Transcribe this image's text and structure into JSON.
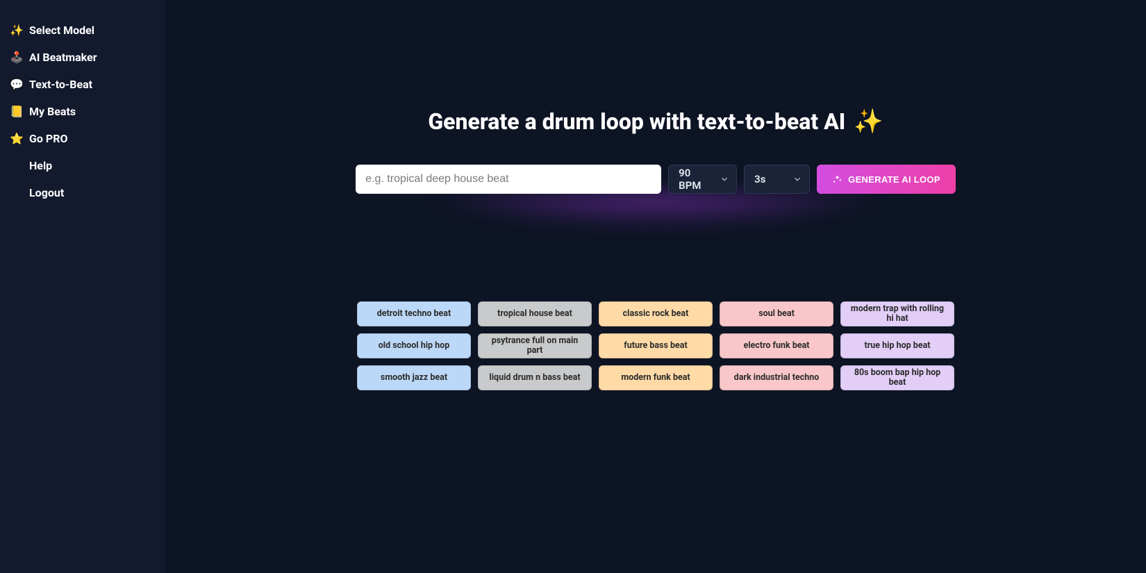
{
  "colors": {
    "bg_main": "#0d1424",
    "bg_sidebar": "#131a2e",
    "select_bg": "#1b2338",
    "select_border": "#2c3753",
    "btn_grad_start": "#d24de0",
    "btn_grad_end": "#ee3fa8",
    "preset_blue": "#bcd8f8",
    "preset_grey": "#c8cacc",
    "preset_orange": "#fddaa6",
    "preset_pink": "#f9c7c9",
    "preset_purple": "#e2cef7"
  },
  "sidebar": {
    "items": [
      {
        "emoji": "✨",
        "label": "Select Model"
      },
      {
        "emoji": "🕹️",
        "label": "AI Beatmaker"
      },
      {
        "emoji": "💬",
        "label": "Text-to-Beat"
      },
      {
        "emoji": "📒",
        "label": "My Beats"
      },
      {
        "emoji": "⭐",
        "label": "Go PRO"
      },
      {
        "emoji": "",
        "label": "Help"
      },
      {
        "emoji": "",
        "label": "Logout"
      }
    ]
  },
  "main": {
    "heading": "Generate a drum loop with text-to-beat AI",
    "prompt_placeholder": "e.g. tropical deep house beat",
    "bpm_selected": "90 BPM",
    "duration_selected": "3s",
    "generate_label": "GENERATE AI LOOP"
  },
  "presets": [
    {
      "label": "detroit techno beat",
      "color": "c-blue"
    },
    {
      "label": "tropical house beat",
      "color": "c-grey"
    },
    {
      "label": "classic rock beat",
      "color": "c-orange"
    },
    {
      "label": "soul beat",
      "color": "c-pink"
    },
    {
      "label": "modern trap with rolling hi hat",
      "color": "c-purple"
    },
    {
      "label": "old school hip hop",
      "color": "c-blue"
    },
    {
      "label": "psytrance full on main part",
      "color": "c-grey"
    },
    {
      "label": "future bass beat",
      "color": "c-orange"
    },
    {
      "label": "electro funk beat",
      "color": "c-pink"
    },
    {
      "label": "true hip hop beat",
      "color": "c-purple"
    },
    {
      "label": "smooth jazz beat",
      "color": "c-blue"
    },
    {
      "label": "liquid drum n bass beat",
      "color": "c-grey"
    },
    {
      "label": "modern funk beat",
      "color": "c-orange"
    },
    {
      "label": "dark industrial techno",
      "color": "c-pink"
    },
    {
      "label": "80s boom bap hip hop beat",
      "color": "c-purple"
    }
  ]
}
